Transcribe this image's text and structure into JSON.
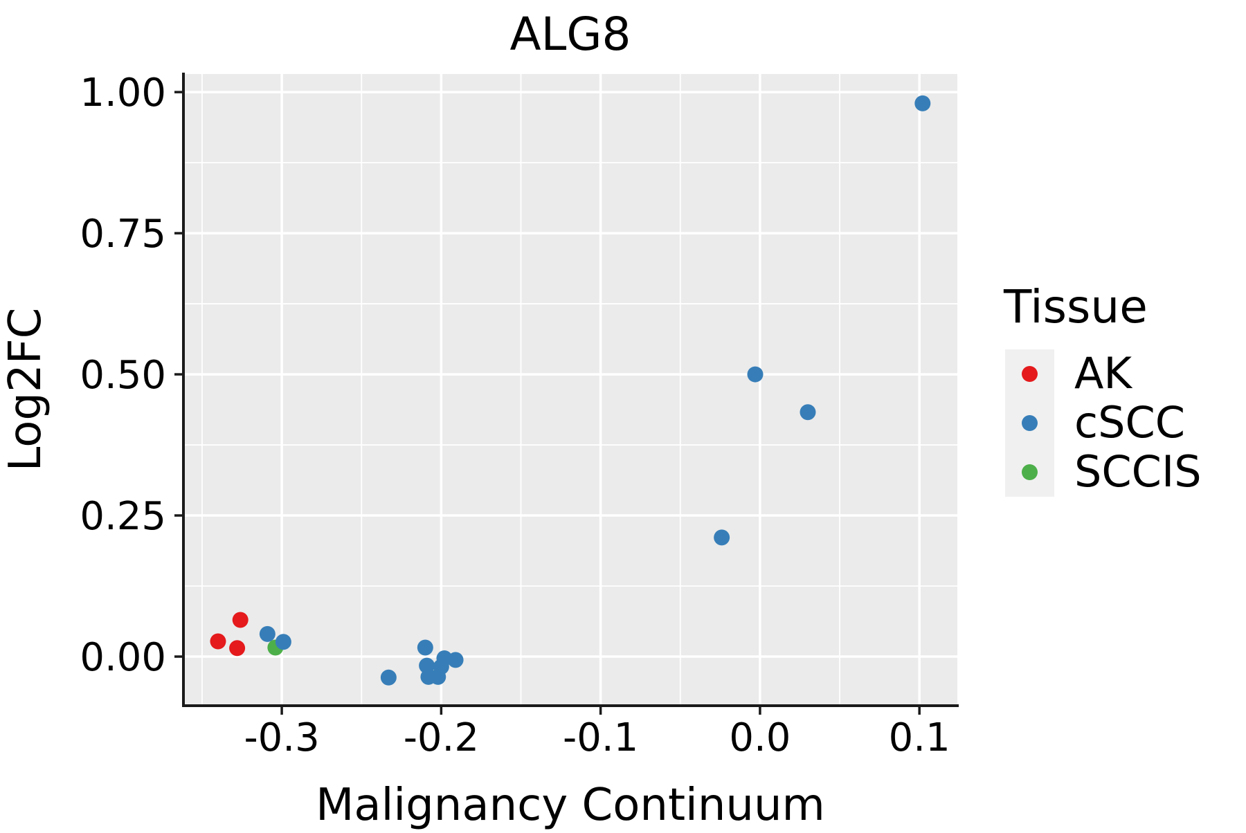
{
  "title": "ALG8",
  "axes": {
    "x_label": "Malignancy Continuum",
    "y_label": "Log2FC"
  },
  "legend": {
    "title": "Tissue",
    "items": [
      {
        "label": "AK",
        "color": "#e41a1c"
      },
      {
        "label": "cSCC",
        "color": "#377eb8"
      },
      {
        "label": "SCCIS",
        "color": "#4daf4a"
      }
    ]
  },
  "colors": {
    "panel_background": "#ebebeb",
    "grid": "#ffffff",
    "axis_line": "#1a1a1a",
    "tick_mark": "#1a1a1a",
    "text": "#000000",
    "legend_key_background": "#f0f0f0"
  },
  "chart_data": {
    "type": "scatter",
    "title": "ALG8",
    "xlabel": "Malignancy Continuum",
    "ylabel": "Log2FC",
    "xlim": [
      -0.3617,
      0.1238
    ],
    "ylim": [
      -0.087,
      1.032
    ],
    "x_ticks": [
      -0.3,
      -0.2,
      -0.1,
      0.0,
      0.1
    ],
    "x_tick_labels": [
      "-0.3",
      "-0.2",
      "-0.1",
      "0.0",
      "0.1"
    ],
    "y_ticks": [
      0.0,
      0.25,
      0.5,
      0.75,
      1.0
    ],
    "y_tick_labels": [
      "0.00",
      "0.25",
      "0.50",
      "0.75",
      "1.00"
    ],
    "x_minor_ticks": [
      -0.35,
      -0.25,
      -0.15,
      -0.05,
      0.05
    ],
    "y_minor_ticks": [
      0.125,
      0.375,
      0.625,
      0.875
    ],
    "grid": true,
    "legend_position": "right",
    "series_key": "tissue",
    "point_radius_px": 11.5,
    "points": [
      {
        "x": -0.326,
        "y": 0.065,
        "tissue": "AK"
      },
      {
        "x": -0.34,
        "y": 0.027,
        "tissue": "AK"
      },
      {
        "x": -0.328,
        "y": 0.015,
        "tissue": "AK"
      },
      {
        "x": -0.309,
        "y": 0.04,
        "tissue": "cSCC"
      },
      {
        "x": -0.304,
        "y": 0.016,
        "tissue": "SCCIS"
      },
      {
        "x": -0.299,
        "y": 0.026,
        "tissue": "cSCC"
      },
      {
        "x": -0.233,
        "y": -0.037,
        "tissue": "cSCC"
      },
      {
        "x": -0.21,
        "y": 0.016,
        "tissue": "cSCC"
      },
      {
        "x": -0.209,
        "y": -0.016,
        "tissue": "cSCC"
      },
      {
        "x": -0.208,
        "y": -0.036,
        "tissue": "cSCC"
      },
      {
        "x": -0.202,
        "y": -0.036,
        "tissue": "cSCC"
      },
      {
        "x": -0.2,
        "y": -0.018,
        "tissue": "cSCC"
      },
      {
        "x": -0.198,
        "y": -0.003,
        "tissue": "cSCC"
      },
      {
        "x": -0.191,
        "y": -0.006,
        "tissue": "cSCC"
      },
      {
        "x": -0.024,
        "y": 0.211,
        "tissue": "cSCC"
      },
      {
        "x": -0.003,
        "y": 0.5,
        "tissue": "cSCC"
      },
      {
        "x": 0.03,
        "y": 0.433,
        "tissue": "cSCC"
      },
      {
        "x": 0.102,
        "y": 0.98,
        "tissue": "cSCC"
      }
    ]
  }
}
